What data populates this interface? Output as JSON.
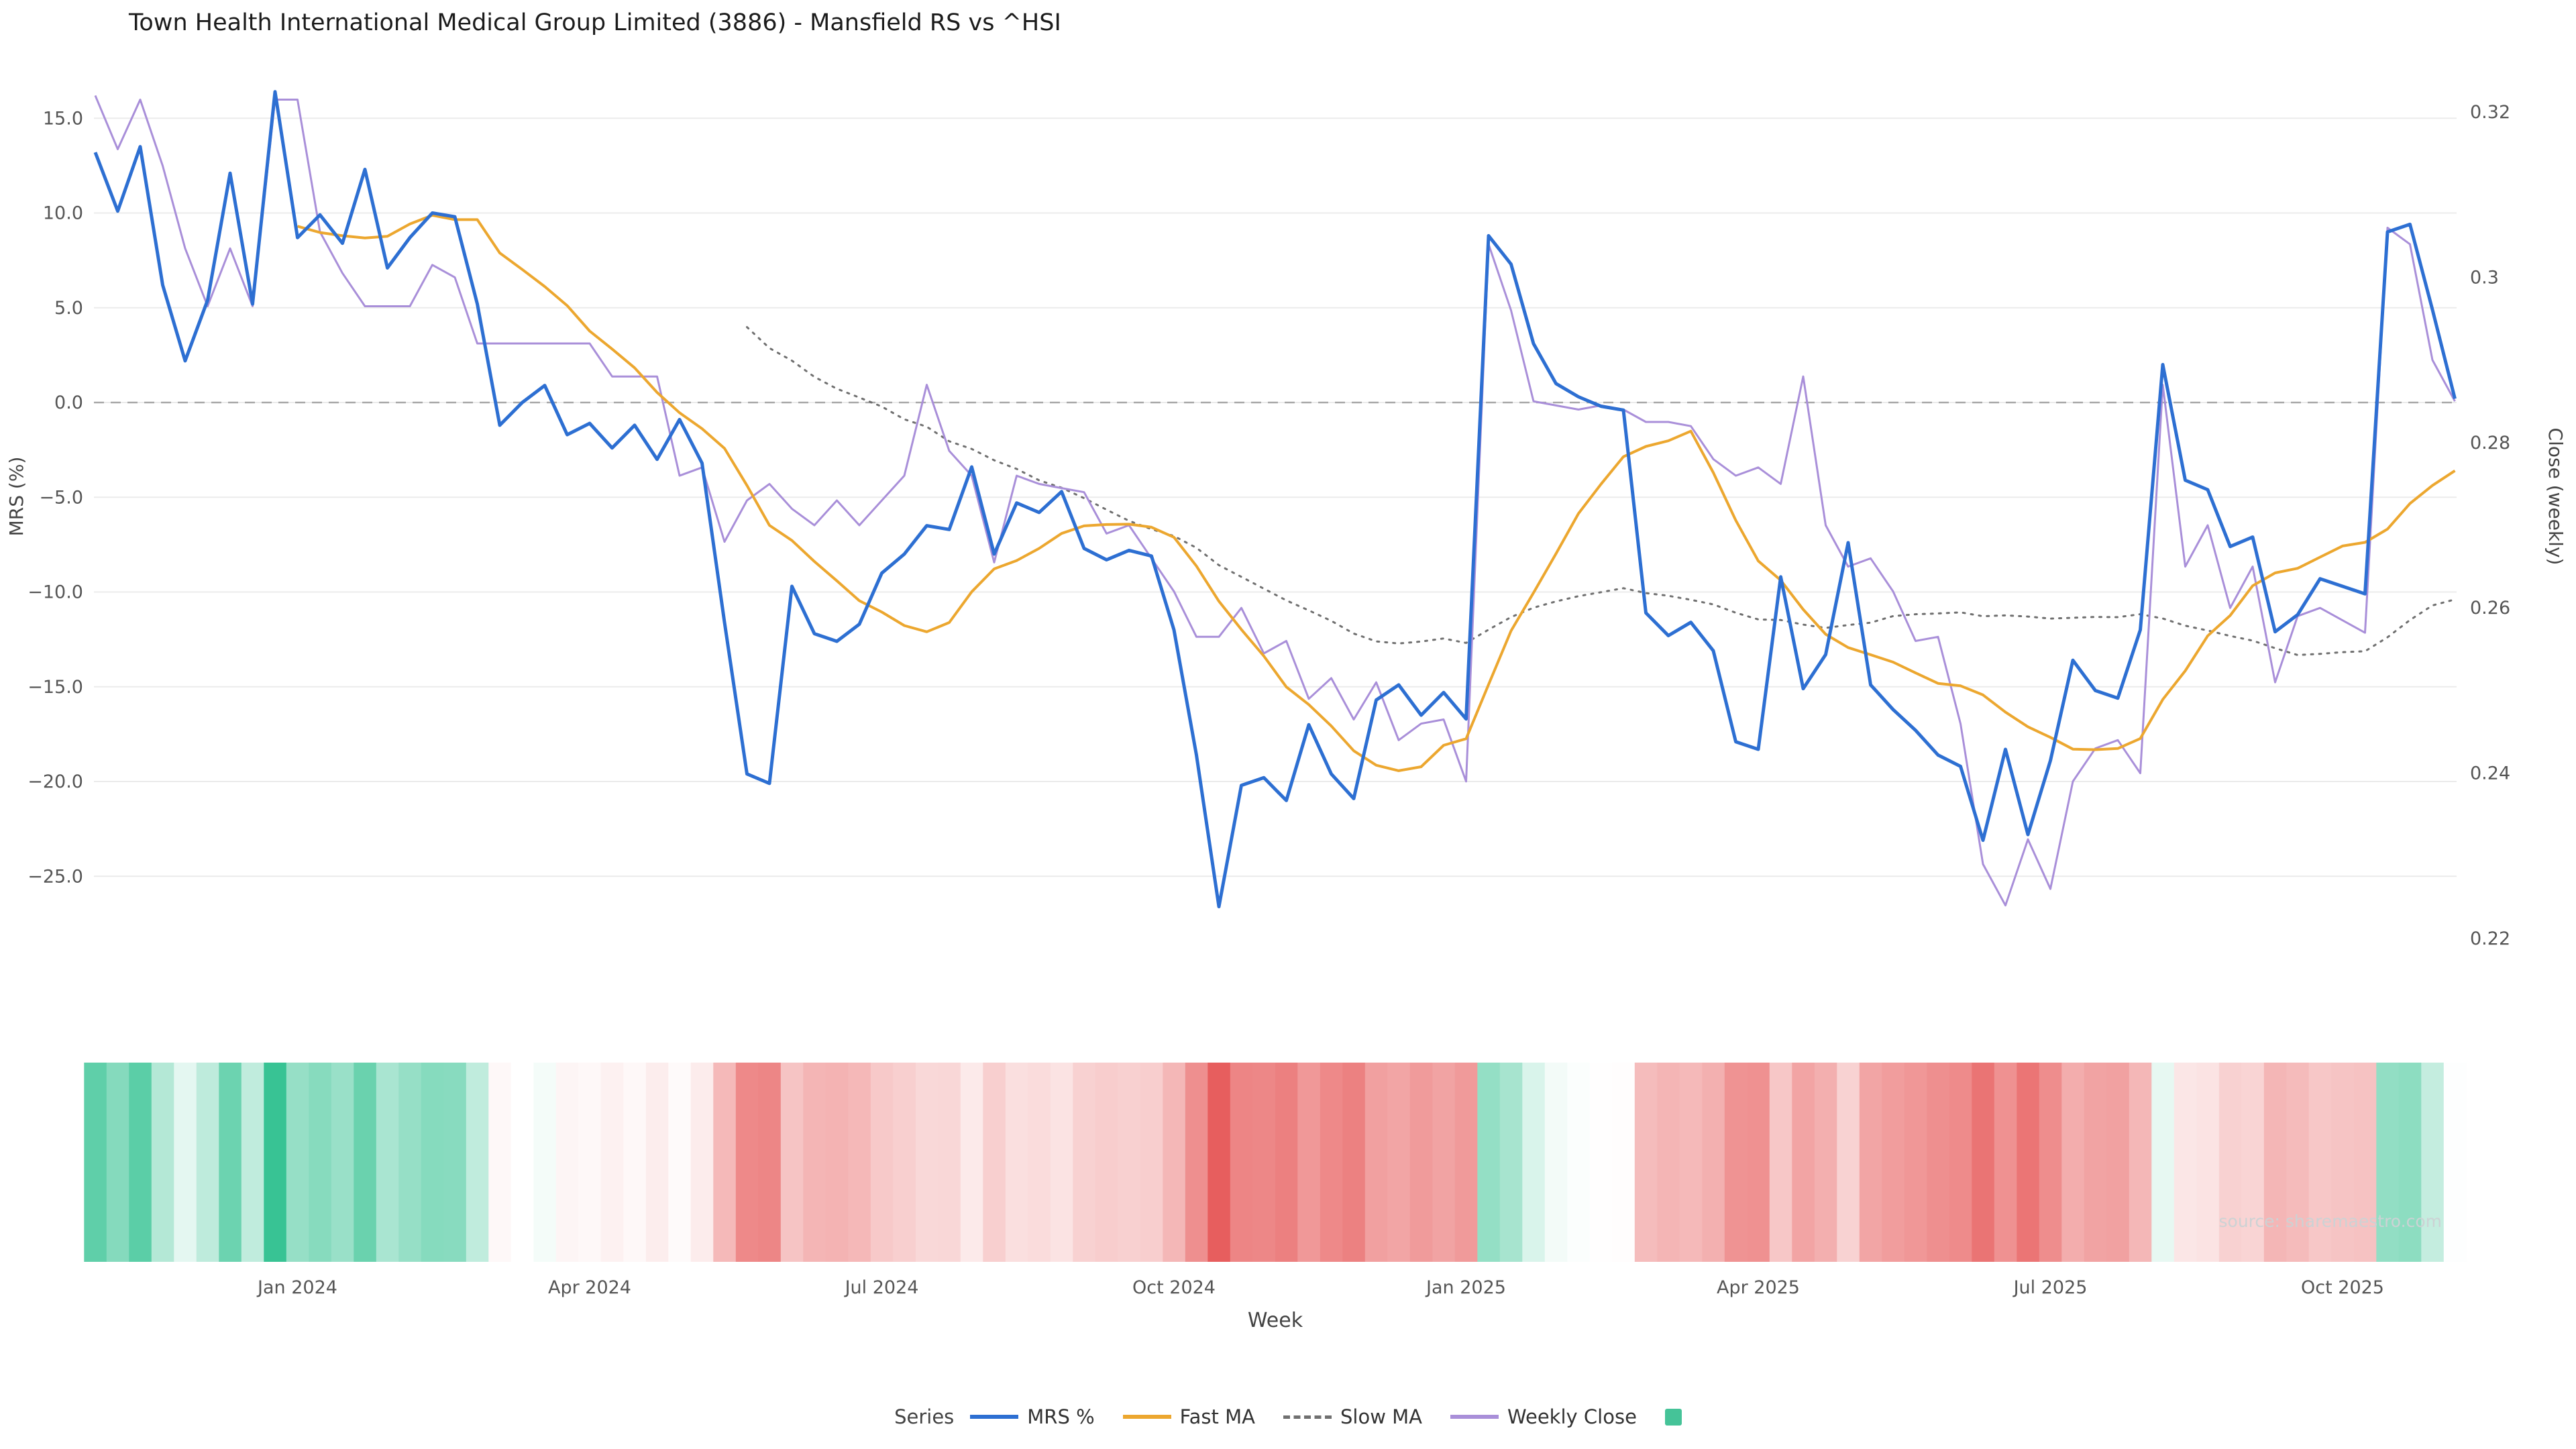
{
  "title": "Town Health International Medical Group Limited (3886) - Mansfield RS vs ^HSI",
  "source": "source: sharemaestro.com",
  "chart_data": {
    "type": "line",
    "x_unit": "week_index",
    "weeks": 106,
    "zero_line": true,
    "axes": {
      "x_label": "Week",
      "left_label": "MRS (%)",
      "right_label": "Close (weekly)",
      "left_ticks": [
        {
          "v": 15,
          "label": "15.0"
        },
        {
          "v": 10,
          "label": "10.0"
        },
        {
          "v": 5,
          "label": "5.0"
        },
        {
          "v": 0,
          "label": "0.0"
        },
        {
          "v": -5,
          "label": "−5.0"
        },
        {
          "v": -10,
          "label": "−10.0"
        },
        {
          "v": -15,
          "label": "−15.0"
        },
        {
          "v": -20,
          "label": "−20.0"
        },
        {
          "v": -25,
          "label": "−25.0"
        }
      ],
      "right_ticks": [
        {
          "v": 0.32,
          "label": "0.32"
        },
        {
          "v": 0.3,
          "label": "0.3"
        },
        {
          "v": 0.28,
          "label": "0.28"
        },
        {
          "v": 0.26,
          "label": "0.26"
        },
        {
          "v": 0.24,
          "label": "0.24"
        },
        {
          "v": 0.22,
          "label": "0.22"
        }
      ],
      "x_ticks": [
        {
          "week": 9,
          "label": "Jan 2024"
        },
        {
          "week": 22,
          "label": "Apr 2024"
        },
        {
          "week": 35,
          "label": "Jul 2024"
        },
        {
          "week": 48,
          "label": "Oct 2024"
        },
        {
          "week": 61,
          "label": "Jan 2025"
        },
        {
          "week": 74,
          "label": "Apr 2025"
        },
        {
          "week": 87,
          "label": "Jul 2025"
        },
        {
          "week": 100,
          "label": "Oct 2025"
        }
      ]
    },
    "series": [
      {
        "name": "MRS %",
        "axis": "left",
        "color": "#2d6fd2",
        "style": "solid",
        "values": [
          13.2,
          10.1,
          13.5,
          6.2,
          2.2,
          5.4,
          12.1,
          5.2,
          16.4,
          8.7,
          9.9,
          8.4,
          12.3,
          7.1,
          8.7,
          10.0,
          9.8,
          5.2,
          -1.2,
          0.0,
          0.9,
          -1.7,
          -1.1,
          -2.4,
          -1.2,
          -3.0,
          -0.9,
          -3.2,
          -11.6,
          -19.6,
          -20.1,
          -9.7,
          -12.2,
          -12.6,
          -11.7,
          -9.0,
          -8.0,
          -6.5,
          -6.7,
          -3.4,
          -8.0,
          -5.3,
          -5.8,
          -4.7,
          -7.7,
          -8.3,
          -7.8,
          -8.1,
          -12.0,
          -18.6,
          -26.6,
          -20.2,
          -19.8,
          -21.0,
          -17.0,
          -19.6,
          -20.9,
          -15.7,
          -14.9,
          -16.5,
          -15.3,
          -16.7,
          8.8,
          7.3,
          3.1,
          1.0,
          0.3,
          -0.2,
          -0.4,
          -11.1,
          -12.3,
          -11.6,
          -13.1,
          -17.9,
          -18.3,
          -9.2,
          -15.1,
          -13.3,
          -7.4,
          -14.9,
          -16.2,
          -17.3,
          -18.6,
          -19.2,
          -23.1,
          -18.3,
          -22.8,
          -18.9,
          -13.6,
          -15.2,
          -15.6,
          -12.0,
          2.0,
          -4.1,
          -4.6,
          -7.6,
          -7.1,
          -12.1,
          -11.2,
          -9.3,
          -9.7,
          -10.1,
          9.0,
          9.4,
          4.9,
          0.2
        ]
      },
      {
        "name": "Fast MA",
        "axis": "left",
        "color": "#eca72f",
        "style": "solid",
        "derived": "sma_of_mrs",
        "window": 10
      },
      {
        "name": "Slow MA",
        "axis": "left",
        "color": "#707070",
        "style": "dotted",
        "derived": "sma_of_mrs",
        "window": 30
      },
      {
        "name": "Weekly Close",
        "axis": "right",
        "color": "#a98fd9",
        "style": "solid",
        "values": [
          0.322,
          0.3155,
          0.3215,
          0.3135,
          0.3035,
          0.2965,
          0.3035,
          0.2965,
          0.3215,
          0.3215,
          0.3055,
          0.3005,
          0.2965,
          0.2965,
          0.2965,
          0.3015,
          0.3,
          0.292,
          0.292,
          0.292,
          0.292,
          0.292,
          0.292,
          0.288,
          0.288,
          0.288,
          0.276,
          0.277,
          0.268,
          0.273,
          0.275,
          0.272,
          0.27,
          0.273,
          0.27,
          0.273,
          0.276,
          0.287,
          0.279,
          0.276,
          0.2655,
          0.276,
          0.275,
          0.2745,
          0.274,
          0.269,
          0.27,
          0.266,
          0.262,
          0.2565,
          0.2565,
          0.26,
          0.2545,
          0.256,
          0.249,
          0.2515,
          0.2465,
          0.251,
          0.244,
          0.246,
          0.2465,
          0.239,
          0.304,
          0.296,
          0.285,
          0.2845,
          0.284,
          0.2845,
          0.284,
          0.2825,
          0.2825,
          0.282,
          0.278,
          0.276,
          0.277,
          0.275,
          0.288,
          0.27,
          0.265,
          0.266,
          0.262,
          0.256,
          0.2565,
          0.246,
          0.229,
          0.224,
          0.232,
          0.226,
          0.239,
          0.243,
          0.244,
          0.24,
          0.287,
          0.265,
          0.27,
          0.26,
          0.265,
          0.251,
          0.259,
          0.26,
          0.2585,
          0.257,
          0.306,
          0.304,
          0.29,
          0.285
        ]
      }
    ],
    "heatmap": {
      "based_on": "MRS %",
      "positive_color": "#37c393",
      "negative_color": "#e75c5c",
      "positive_max": 16.5,
      "negative_max": 27
    },
    "legend": {
      "title": "Series",
      "items": [
        {
          "name": "MRS %",
          "type": "line",
          "color": "#2d6fd2"
        },
        {
          "name": "Fast MA",
          "type": "line",
          "color": "#eca72f"
        },
        {
          "name": "Slow MA",
          "type": "dashed",
          "color": "#707070"
        },
        {
          "name": "Weekly Close",
          "type": "line",
          "color": "#a98fd9"
        },
        {
          "name": "",
          "type": "square",
          "color": "#45c398"
        }
      ]
    }
  }
}
